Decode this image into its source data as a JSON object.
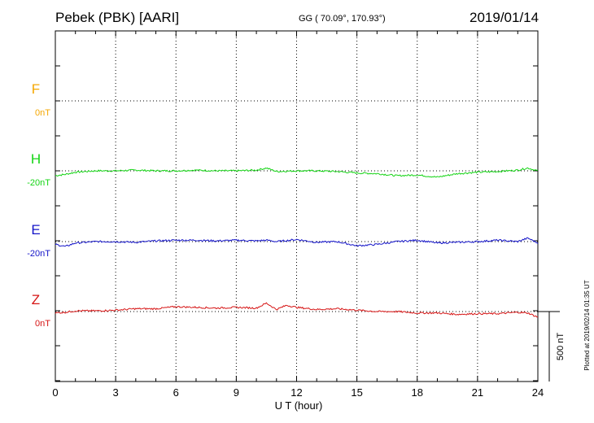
{
  "header": {
    "station": "Pebek (PBK)  [AARI]",
    "coords": "GG ( 70.09°, 170.93°)",
    "date": "2019/01/14"
  },
  "plotted_note": "Plotted at 2019/02/14 01:35 UT",
  "colors": {
    "F": "#f5a700",
    "H": "#14d414",
    "E": "#1414c8",
    "Z": "#d61414"
  },
  "chart_data": {
    "type": "line",
    "title": "Pebek (PBK)  [AARI]  2019/01/14",
    "xlabel": "U T (hour)",
    "ylabel": "",
    "xlim": [
      0,
      24
    ],
    "x_ticks": [
      0,
      3,
      6,
      9,
      12,
      15,
      18,
      21,
      24
    ],
    "x_tick_labels": [
      "0",
      "3",
      "6",
      "9",
      "12",
      "15",
      "18",
      "21",
      "24"
    ],
    "scale_bar_label": "500 nT",
    "series": [
      {
        "name": "F",
        "baseline_label": "0nT",
        "color": "#f5a700",
        "x": [],
        "values": []
      },
      {
        "name": "H",
        "baseline_label": "-20nT",
        "color": "#14d414",
        "x": [
          0,
          0.5,
          1,
          2,
          3,
          4,
          5,
          6,
          7,
          8,
          9,
          10,
          10.5,
          11,
          12,
          13,
          14,
          15,
          16,
          17,
          18,
          19,
          20,
          21,
          22,
          23,
          23.5,
          24
        ],
        "values": [
          -35,
          -25,
          -10,
          0,
          0,
          5,
          0,
          0,
          5,
          0,
          0,
          5,
          20,
          -5,
          0,
          0,
          -5,
          -15,
          -20,
          -35,
          -30,
          -45,
          -20,
          -10,
          -5,
          5,
          20,
          0
        ]
      },
      {
        "name": "E",
        "baseline_label": "-20nT",
        "color": "#1414c8",
        "x": [
          0,
          0.5,
          1,
          2,
          3,
          4,
          5,
          6,
          7,
          8,
          9,
          10,
          10.5,
          11,
          12,
          13,
          14,
          15,
          16,
          17,
          18,
          19,
          20,
          21,
          22,
          23,
          23.5,
          24
        ],
        "values": [
          -20,
          -35,
          -10,
          0,
          0,
          -5,
          5,
          10,
          10,
          5,
          10,
          5,
          10,
          0,
          15,
          -5,
          0,
          -30,
          -20,
          0,
          10,
          -10,
          -5,
          0,
          10,
          0,
          25,
          -10
        ]
      },
      {
        "name": "Z",
        "baseline_label": "0nT",
        "color": "#d61414",
        "x": [
          0,
          0.5,
          1,
          2,
          3,
          4,
          5,
          6,
          7,
          8,
          9,
          10,
          10.5,
          11,
          11.5,
          12,
          13,
          14,
          15,
          16,
          17,
          18,
          19,
          20,
          21,
          22,
          23,
          23.5,
          24
        ],
        "values": [
          -10,
          -5,
          5,
          5,
          10,
          20,
          20,
          35,
          30,
          25,
          30,
          25,
          60,
          15,
          45,
          30,
          15,
          20,
          10,
          0,
          0,
          -10,
          -10,
          -20,
          -15,
          -15,
          -5,
          -10,
          -40
        ]
      }
    ]
  }
}
